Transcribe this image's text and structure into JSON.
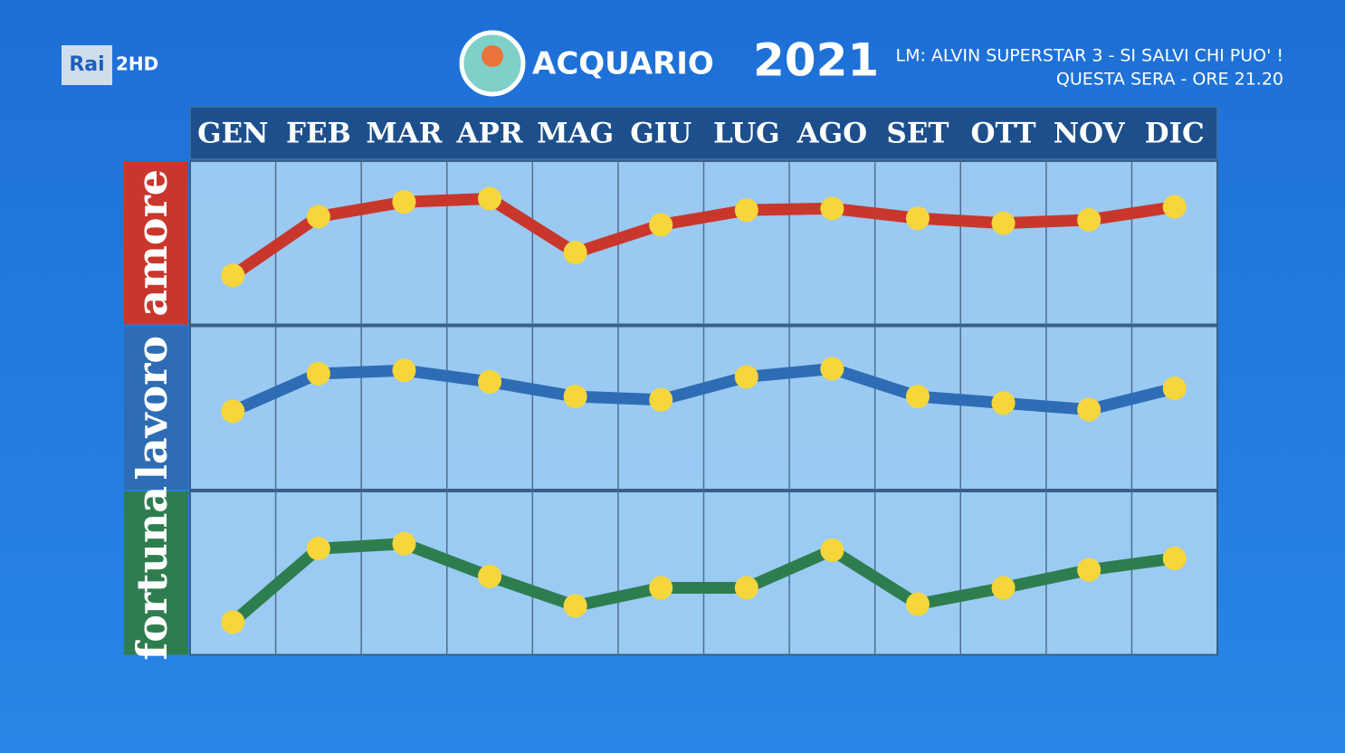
{
  "header": {
    "channel": "Rai",
    "channel_variant": "2HD",
    "sign": "ACQUARIO",
    "year": "2021",
    "ticker_line1": "LM: ALVIN SUPERSTAR 3 - SI SALVI CHI PUO' !",
    "ticker_line2": "QUESTA SERA - ORE 21.20"
  },
  "chart_data": {
    "type": "line",
    "categories": [
      "GEN",
      "FEB",
      "MAR",
      "APR",
      "MAG",
      "GIU",
      "LUG",
      "AGO",
      "SET",
      "OTT",
      "NOV",
      "DIC"
    ],
    "ylim": [
      0,
      10
    ],
    "marker_color": "#f7d63c",
    "series": [
      {
        "name": "amore",
        "color": "#c9372c",
        "values": [
          3.0,
          6.6,
          7.5,
          7.7,
          4.4,
          6.1,
          7.0,
          7.1,
          6.5,
          6.2,
          6.4,
          7.2
        ]
      },
      {
        "name": "lavoro",
        "color": "#2e6db5",
        "values": [
          4.8,
          7.1,
          7.3,
          6.6,
          5.7,
          5.5,
          6.9,
          7.4,
          5.7,
          5.3,
          4.9,
          6.2
        ]
      },
      {
        "name": "fortuna",
        "color": "#2e7d4f",
        "values": [
          2.0,
          6.5,
          6.8,
          4.8,
          3.0,
          4.1,
          4.1,
          6.4,
          3.1,
          4.1,
          5.2,
          5.9
        ]
      }
    ]
  }
}
